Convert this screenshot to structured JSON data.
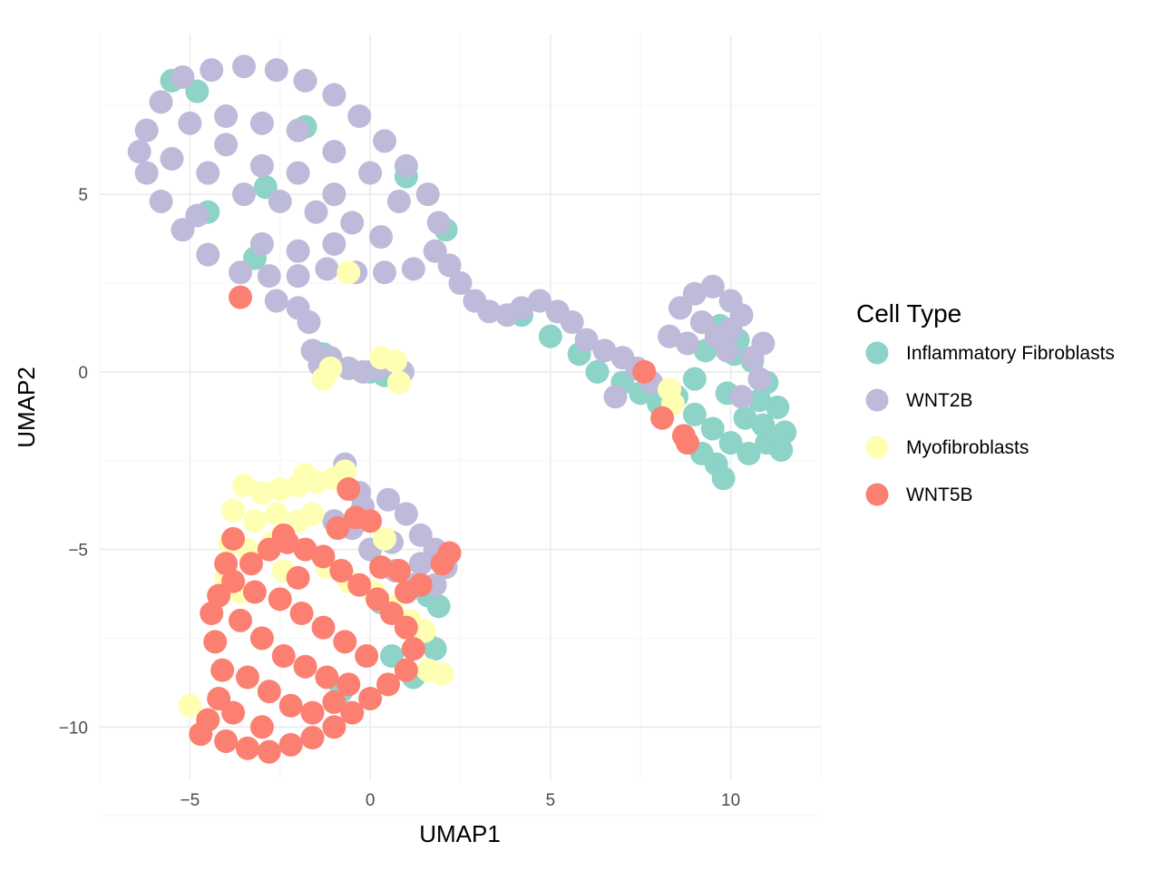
{
  "chart_data": {
    "type": "scatter",
    "xlabel": "UMAP1",
    "ylabel": "UMAP2",
    "xlim": [
      -7.5,
      12.5
    ],
    "ylim": [
      -11.5,
      9.5
    ],
    "x_ticks": [
      -5,
      0,
      5,
      10
    ],
    "y_ticks": [
      -10,
      -5,
      0,
      5
    ],
    "x_tick_labels": [
      "−5",
      "0",
      "5",
      "10"
    ],
    "y_tick_labels": [
      "−10",
      "−5",
      "0",
      "5"
    ],
    "grid": true,
    "legend": {
      "title": "Cell Type",
      "position": "right"
    },
    "series": [
      {
        "name": "Inflammatory Fibroblasts",
        "color": "#8DD3C7",
        "points": [
          [
            -5.5,
            8.2
          ],
          [
            -4.8,
            7.9
          ],
          [
            -1.8,
            6.9
          ],
          [
            -2.9,
            5.2
          ],
          [
            -3.2,
            3.2
          ],
          [
            -4.5,
            4.5
          ],
          [
            2.1,
            4.0
          ],
          [
            1.0,
            5.5
          ],
          [
            4.2,
            1.6
          ],
          [
            5.0,
            1.0
          ],
          [
            5.8,
            0.5
          ],
          [
            6.3,
            0.0
          ],
          [
            7.0,
            -0.3
          ],
          [
            7.5,
            -0.6
          ],
          [
            8.0,
            -0.9
          ],
          [
            8.5,
            -0.7
          ],
          [
            9.0,
            -1.2
          ],
          [
            9.5,
            -1.6
          ],
          [
            10.0,
            -2.0
          ],
          [
            10.5,
            -2.3
          ],
          [
            11.0,
            -2.0
          ],
          [
            11.5,
            -1.7
          ],
          [
            11.3,
            -1.0
          ],
          [
            11.0,
            -0.3
          ],
          [
            10.6,
            0.3
          ],
          [
            10.2,
            0.9
          ],
          [
            9.7,
            1.3
          ],
          [
            9.3,
            0.6
          ],
          [
            9.0,
            -0.2
          ],
          [
            9.9,
            -0.6
          ],
          [
            10.4,
            -1.3
          ],
          [
            10.8,
            -0.8
          ],
          [
            9.6,
            -2.6
          ],
          [
            9.8,
            -3.0
          ],
          [
            9.2,
            -2.3
          ],
          [
            10.9,
            -1.5
          ],
          [
            11.4,
            -2.2
          ],
          [
            10.1,
            0.5
          ],
          [
            9.5,
            2.4
          ],
          [
            -1.3,
            0.5
          ],
          [
            0.0,
            0.0
          ],
          [
            0.4,
            -0.1
          ],
          [
            1.6,
            -6.3
          ],
          [
            1.9,
            -6.6
          ],
          [
            1.5,
            -7.5
          ],
          [
            1.2,
            -8.6
          ],
          [
            0.6,
            -8.0
          ],
          [
            1.8,
            -7.8
          ],
          [
            -0.8,
            -9.0
          ],
          [
            0.3,
            -6.5
          ],
          [
            1.9,
            -5.2
          ]
        ]
      },
      {
        "name": "WNT2B",
        "color": "#BEBADA",
        "points": [
          [
            -6.2,
            6.8
          ],
          [
            -5.8,
            7.6
          ],
          [
            -5.2,
            8.3
          ],
          [
            -4.4,
            8.5
          ],
          [
            -3.5,
            8.6
          ],
          [
            -2.6,
            8.5
          ],
          [
            -1.8,
            8.2
          ],
          [
            -1.0,
            7.8
          ],
          [
            -0.3,
            7.2
          ],
          [
            0.4,
            6.5
          ],
          [
            1.0,
            5.8
          ],
          [
            1.6,
            5.0
          ],
          [
            1.9,
            4.2
          ],
          [
            1.8,
            3.4
          ],
          [
            1.2,
            2.9
          ],
          [
            0.4,
            2.8
          ],
          [
            -0.4,
            2.8
          ],
          [
            -1.2,
            2.9
          ],
          [
            -2.0,
            2.7
          ],
          [
            -2.8,
            2.7
          ],
          [
            -3.6,
            2.8
          ],
          [
            -4.5,
            3.3
          ],
          [
            -5.2,
            4.0
          ],
          [
            -5.8,
            4.8
          ],
          [
            -6.2,
            5.6
          ],
          [
            -6.4,
            6.2
          ],
          [
            -5.0,
            7.0
          ],
          [
            -4.0,
            7.2
          ],
          [
            -3.0,
            7.0
          ],
          [
            -2.0,
            6.8
          ],
          [
            -1.0,
            6.2
          ],
          [
            0.0,
            5.6
          ],
          [
            0.8,
            4.8
          ],
          [
            -0.5,
            4.2
          ],
          [
            -1.5,
            4.5
          ],
          [
            -2.5,
            4.8
          ],
          [
            -3.5,
            5.0
          ],
          [
            -4.5,
            5.6
          ],
          [
            -5.5,
            6.0
          ],
          [
            -3.0,
            3.6
          ],
          [
            -2.0,
            3.4
          ],
          [
            -1.0,
            3.6
          ],
          [
            0.3,
            3.8
          ],
          [
            -4.0,
            6.4
          ],
          [
            -3.0,
            5.8
          ],
          [
            -2.0,
            5.6
          ],
          [
            -1.0,
            5.0
          ],
          [
            -4.8,
            4.4
          ],
          [
            -2.6,
            2.0
          ],
          [
            -2.0,
            1.8
          ],
          [
            -1.7,
            1.4
          ],
          [
            -1.6,
            0.6
          ],
          [
            -1.4,
            0.2
          ],
          [
            -1.1,
            0.4
          ],
          [
            -0.6,
            0.1
          ],
          [
            -0.2,
            0.0
          ],
          [
            0.2,
            0.1
          ],
          [
            0.6,
            0.2
          ],
          [
            0.9,
            0.0
          ],
          [
            2.2,
            3.0
          ],
          [
            2.5,
            2.5
          ],
          [
            2.9,
            2.0
          ],
          [
            3.3,
            1.7
          ],
          [
            3.8,
            1.6
          ],
          [
            4.2,
            1.8
          ],
          [
            4.7,
            2.0
          ],
          [
            5.2,
            1.7
          ],
          [
            5.6,
            1.4
          ],
          [
            6.0,
            0.9
          ],
          [
            6.5,
            0.6
          ],
          [
            7.0,
            0.4
          ],
          [
            7.4,
            0.1
          ],
          [
            7.8,
            -0.3
          ],
          [
            8.3,
            1.0
          ],
          [
            8.6,
            1.8
          ],
          [
            9.0,
            2.2
          ],
          [
            9.5,
            2.4
          ],
          [
            10.0,
            2.0
          ],
          [
            10.3,
            1.6
          ],
          [
            10.0,
            1.2
          ],
          [
            9.6,
            1.0
          ],
          [
            9.2,
            1.4
          ],
          [
            8.8,
            0.8
          ],
          [
            10.6,
            0.4
          ],
          [
            10.9,
            0.8
          ],
          [
            9.9,
            0.6
          ],
          [
            10.3,
            -0.7
          ],
          [
            10.8,
            -0.2
          ],
          [
            6.8,
            -0.7
          ],
          [
            -0.7,
            -2.6
          ],
          [
            -0.3,
            -3.4
          ],
          [
            0.5,
            -3.6
          ],
          [
            1.0,
            -4.0
          ],
          [
            1.4,
            -4.6
          ],
          [
            1.8,
            -5.0
          ],
          [
            2.1,
            -5.5
          ],
          [
            1.8,
            -6.0
          ],
          [
            1.2,
            -6.0
          ],
          [
            0.7,
            -5.6
          ],
          [
            0.0,
            -5.0
          ],
          [
            -0.5,
            -4.4
          ],
          [
            -1.0,
            -4.2
          ],
          [
            0.6,
            -4.8
          ],
          [
            1.4,
            -5.4
          ],
          [
            -0.2,
            -3.8
          ]
        ]
      },
      {
        "name": "Myofibroblasts",
        "color": "#FFFFB3",
        "points": [
          [
            -0.6,
            2.8
          ],
          [
            0.3,
            0.4
          ],
          [
            0.7,
            0.3
          ],
          [
            -1.3,
            -0.2
          ],
          [
            -1.1,
            0.1
          ],
          [
            0.8,
            -0.3
          ],
          [
            -3.5,
            -3.2
          ],
          [
            -3.0,
            -3.4
          ],
          [
            -2.5,
            -3.3
          ],
          [
            -2.0,
            -3.2
          ],
          [
            -1.5,
            -3.1
          ],
          [
            -1.0,
            -3.0
          ],
          [
            -3.8,
            -3.9
          ],
          [
            -3.2,
            -4.2
          ],
          [
            -2.6,
            -4.0
          ],
          [
            -2.0,
            -4.2
          ],
          [
            -1.6,
            -4.0
          ],
          [
            -3.9,
            -4.8
          ],
          [
            -3.4,
            -5.0
          ],
          [
            -2.7,
            -4.8
          ],
          [
            -4.0,
            -5.8
          ],
          [
            -3.6,
            -6.2
          ],
          [
            -2.4,
            -5.6
          ],
          [
            -1.2,
            -5.5
          ],
          [
            -0.6,
            -5.9
          ],
          [
            0.1,
            -6.2
          ],
          [
            0.6,
            -6.6
          ],
          [
            1.1,
            -7.0
          ],
          [
            1.5,
            -7.3
          ],
          [
            2.0,
            -8.5
          ],
          [
            1.6,
            -8.4
          ],
          [
            0.4,
            -4.7
          ],
          [
            -5.0,
            -9.4
          ],
          [
            8.3,
            -0.5
          ],
          [
            8.4,
            -0.9
          ],
          [
            -0.7,
            -2.8
          ],
          [
            -1.8,
            -2.9
          ]
        ]
      },
      {
        "name": "WNT5B",
        "color": "#FB8072",
        "points": [
          [
            -3.6,
            2.1
          ],
          [
            -4.4,
            -6.8
          ],
          [
            -4.3,
            -7.6
          ],
          [
            -4.1,
            -8.4
          ],
          [
            -4.2,
            -9.2
          ],
          [
            -4.5,
            -9.8
          ],
          [
            -4.7,
            -10.2
          ],
          [
            -4.0,
            -10.4
          ],
          [
            -3.4,
            -10.6
          ],
          [
            -2.8,
            -10.7
          ],
          [
            -2.2,
            -10.5
          ],
          [
            -1.6,
            -10.3
          ],
          [
            -1.0,
            -10.0
          ],
          [
            -0.5,
            -9.6
          ],
          [
            0.0,
            -9.2
          ],
          [
            0.5,
            -8.8
          ],
          [
            1.0,
            -8.4
          ],
          [
            1.2,
            -7.8
          ],
          [
            1.0,
            -7.2
          ],
          [
            0.6,
            -6.8
          ],
          [
            0.2,
            -6.4
          ],
          [
            -0.3,
            -6.0
          ],
          [
            -0.8,
            -5.6
          ],
          [
            -1.3,
            -5.2
          ],
          [
            -1.8,
            -5.0
          ],
          [
            -2.3,
            -4.8
          ],
          [
            -2.8,
            -5.0
          ],
          [
            -3.3,
            -5.4
          ],
          [
            -3.8,
            -5.9
          ],
          [
            -4.2,
            -6.3
          ],
          [
            -3.6,
            -7.0
          ],
          [
            -3.0,
            -7.5
          ],
          [
            -2.4,
            -8.0
          ],
          [
            -1.8,
            -8.3
          ],
          [
            -1.2,
            -8.6
          ],
          [
            -0.6,
            -8.8
          ],
          [
            -3.4,
            -8.6
          ],
          [
            -2.8,
            -9.0
          ],
          [
            -2.2,
            -9.4
          ],
          [
            -1.6,
            -9.6
          ],
          [
            -1.0,
            -9.3
          ],
          [
            -3.8,
            -9.6
          ],
          [
            -3.0,
            -10.0
          ],
          [
            -2.5,
            -6.4
          ],
          [
            -1.9,
            -6.8
          ],
          [
            -1.3,
            -7.2
          ],
          [
            -0.7,
            -7.6
          ],
          [
            -0.1,
            -8.0
          ],
          [
            -3.2,
            -6.2
          ],
          [
            -2.0,
            -5.8
          ],
          [
            -0.9,
            -4.4
          ],
          [
            -0.6,
            -3.3
          ],
          [
            -0.4,
            -4.1
          ],
          [
            0.0,
            -4.2
          ],
          [
            0.3,
            -5.5
          ],
          [
            0.8,
            -5.6
          ],
          [
            1.0,
            -6.2
          ],
          [
            1.4,
            -6.0
          ],
          [
            2.0,
            -5.4
          ],
          [
            2.2,
            -5.1
          ],
          [
            -3.8,
            -4.7
          ],
          [
            -2.4,
            -4.6
          ],
          [
            -4.0,
            -5.4
          ],
          [
            8.1,
            -1.3
          ],
          [
            8.7,
            -1.8
          ],
          [
            8.8,
            -2.0
          ],
          [
            7.6,
            0.0
          ]
        ]
      }
    ]
  }
}
